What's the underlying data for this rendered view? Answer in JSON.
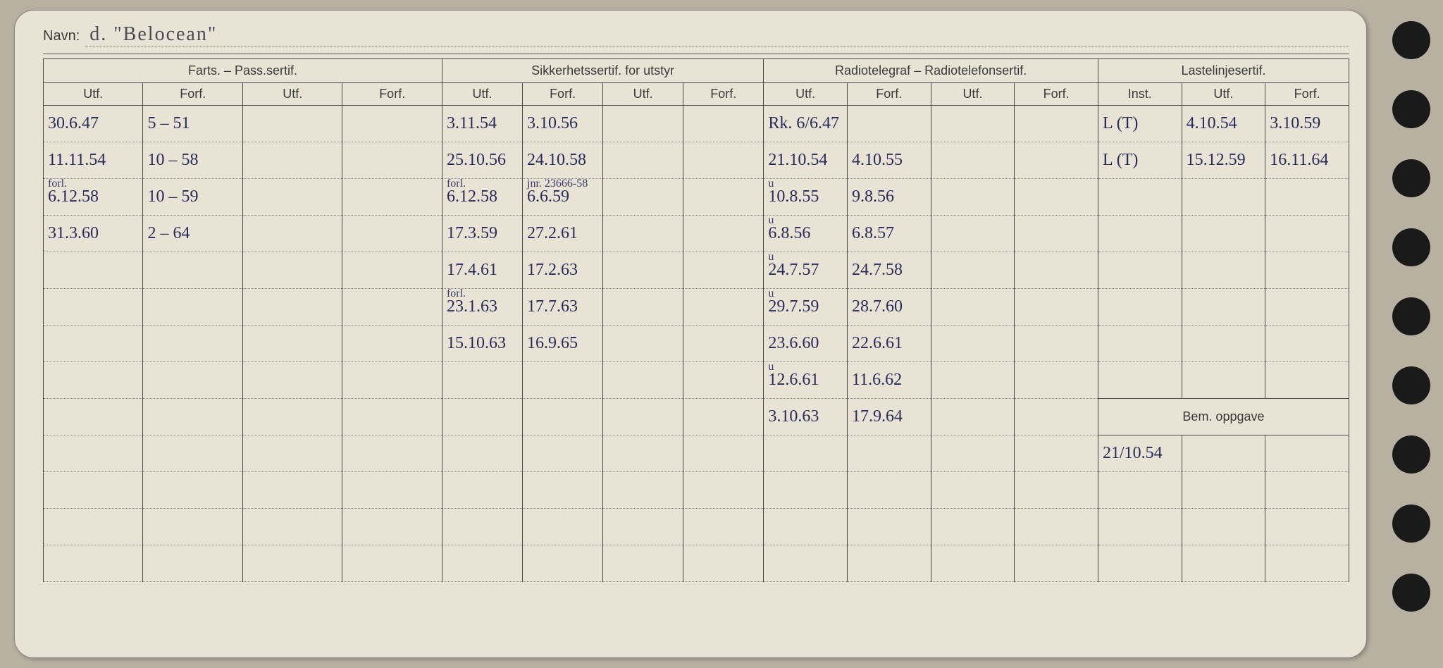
{
  "header": {
    "navn_label": "Navn:",
    "navn_value": "d.  \"Belocean\""
  },
  "sections": {
    "farts": {
      "title": "Farts. – Pass.sertif.",
      "cols": [
        "Utf.",
        "Forf.",
        "Utf.",
        "Forf."
      ]
    },
    "sikker": {
      "title": "Sikkerhetssertif. for utstyr",
      "cols": [
        "Utf.",
        "Forf.",
        "Utf.",
        "Forf."
      ]
    },
    "radio": {
      "title": "Radiotelegraf – Radiotelefonsertif.",
      "cols": [
        "Utf.",
        "Forf.",
        "Utf.",
        "Forf."
      ]
    },
    "laste": {
      "title": "Lastelinjesertif.",
      "cols": [
        "Inst.",
        "Utf.",
        "Forf."
      ]
    },
    "bem": {
      "title": "Bem. oppgave"
    }
  },
  "colors": {
    "card_bg": "#e8e3d5",
    "page_bg": "#b8b0a0",
    "line": "#4a4a4a",
    "ink": "#2a2a5a",
    "print": "#3a3a3a"
  },
  "rows": [
    {
      "farts": [
        "30.6.47",
        "5 – 51",
        "",
        ""
      ],
      "sikker": [
        "3.11.54",
        "3.10.56",
        "",
        ""
      ],
      "radio": [
        "Rk. 6/6.47",
        "",
        "",
        ""
      ],
      "laste": [
        "L (T)",
        "4.10.54",
        "3.10.59"
      ]
    },
    {
      "farts": [
        "11.11.54",
        "10 – 58",
        "",
        ""
      ],
      "sikker": [
        "25.10.56",
        "24.10.58",
        "",
        ""
      ],
      "radio": [
        "21.10.54",
        "4.10.55",
        "",
        ""
      ],
      "laste": [
        "L (T)",
        "15.12.59",
        "16.11.64"
      ]
    },
    {
      "farts_annot": "forl.",
      "farts": [
        "6.12.58",
        "10 – 59",
        "",
        ""
      ],
      "sikker_annot": "forl.",
      "sikker_faint": "jnr. 23666-58",
      "sikker": [
        "6.12.58",
        "6.6.59",
        "",
        ""
      ],
      "radio_annot": "u",
      "radio": [
        "10.8.55",
        "9.8.56",
        "",
        ""
      ],
      "laste": [
        "",
        "",
        ""
      ]
    },
    {
      "farts": [
        "31.3.60",
        "2 – 64",
        "",
        ""
      ],
      "sikker": [
        "17.3.59",
        "27.2.61",
        "",
        ""
      ],
      "radio_annot": "u",
      "radio": [
        "6.8.56",
        "6.8.57",
        "",
        ""
      ],
      "laste": [
        "",
        "",
        ""
      ]
    },
    {
      "farts": [
        "",
        "",
        "",
        ""
      ],
      "sikker": [
        "17.4.61",
        "17.2.63",
        "",
        ""
      ],
      "radio_annot": "u",
      "radio": [
        "24.7.57",
        "24.7.58",
        "",
        ""
      ],
      "laste": [
        "",
        "",
        ""
      ]
    },
    {
      "farts": [
        "",
        "",
        "",
        ""
      ],
      "sikker_annot": "forl.",
      "sikker": [
        "23.1.63",
        "17.7.63",
        "",
        ""
      ],
      "radio_annot": "u",
      "radio": [
        "29.7.59",
        "28.7.60",
        "",
        ""
      ],
      "laste": [
        "",
        "",
        ""
      ]
    },
    {
      "farts": [
        "",
        "",
        "",
        ""
      ],
      "sikker": [
        "15.10.63",
        "16.9.65",
        "",
        ""
      ],
      "radio": [
        "23.6.60",
        "22.6.61",
        "",
        ""
      ],
      "laste": [
        "",
        "",
        ""
      ]
    },
    {
      "farts": [
        "",
        "",
        "",
        ""
      ],
      "sikker": [
        "",
        "",
        "",
        ""
      ],
      "radio_annot": "u",
      "radio": [
        "12.6.61",
        "11.6.62",
        "",
        ""
      ],
      "laste": [
        "",
        "",
        ""
      ]
    },
    {
      "farts": [
        "",
        "",
        "",
        ""
      ],
      "sikker": [
        "",
        "",
        "",
        ""
      ],
      "radio": [
        "3.10.63",
        "17.9.64",
        "",
        ""
      ],
      "bem_header": true
    },
    {
      "farts": [
        "",
        "",
        "",
        ""
      ],
      "sikker": [
        "",
        "",
        "",
        ""
      ],
      "radio": [
        "",
        "",
        "",
        ""
      ],
      "bem": [
        "21/10.54",
        "",
        ""
      ]
    },
    {
      "farts": [
        "",
        "",
        "",
        ""
      ],
      "sikker": [
        "",
        "",
        "",
        ""
      ],
      "radio": [
        "",
        "",
        "",
        ""
      ],
      "bem": [
        "",
        "",
        ""
      ]
    },
    {
      "farts": [
        "",
        "",
        "",
        ""
      ],
      "sikker": [
        "",
        "",
        "",
        ""
      ],
      "radio": [
        "",
        "",
        "",
        ""
      ],
      "bem": [
        "",
        "",
        ""
      ]
    },
    {
      "farts": [
        "",
        "",
        "",
        ""
      ],
      "sikker": [
        "",
        "",
        "",
        ""
      ],
      "radio": [
        "",
        "",
        "",
        ""
      ],
      "bem": [
        "",
        "",
        ""
      ]
    }
  ]
}
